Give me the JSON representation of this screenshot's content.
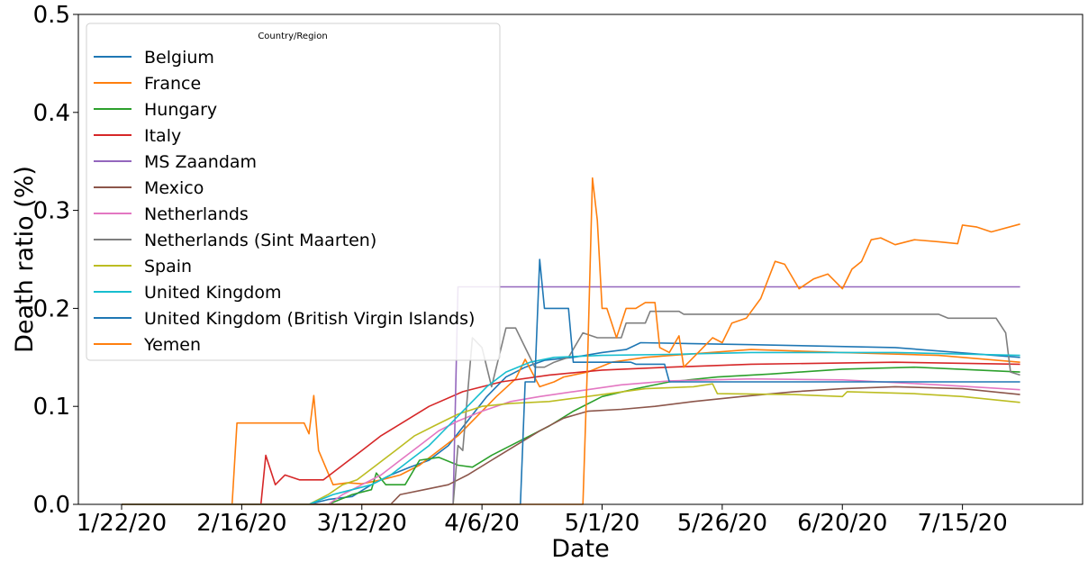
{
  "chart_data": {
    "type": "line",
    "xlabel": "Date",
    "ylabel": "Death ratio (%)",
    "x_start": "2020-01-22",
    "x_end": "2020-07-27",
    "xlim": [
      "2020-01-13",
      "2020-08-09"
    ],
    "ylim": [
      0,
      0.5
    ],
    "x_ticks": [
      "1/22/20",
      "2/16/20",
      "3/12/20",
      "4/6/20",
      "5/1/20",
      "5/26/20",
      "6/20/20",
      "7/15/20"
    ],
    "y_ticks": [
      "0.0",
      "0.1",
      "0.2",
      "0.3",
      "0.4",
      "0.5"
    ],
    "grid": false,
    "legend": {
      "title": "Country/Region",
      "placement": "top-left"
    },
    "series": [
      {
        "name": "Belgium",
        "color": "#1f77b4",
        "points": [
          [
            "2020-01-22",
            0
          ],
          [
            "2020-03-01",
            0
          ],
          [
            "2020-03-05",
            0.005
          ],
          [
            "2020-03-10",
            0.008
          ],
          [
            "2020-03-14",
            0.02
          ],
          [
            "2020-03-18",
            0.03
          ],
          [
            "2020-03-22",
            0.038
          ],
          [
            "2020-03-26",
            0.045
          ],
          [
            "2020-03-30",
            0.06
          ],
          [
            "2020-04-03",
            0.085
          ],
          [
            "2020-04-07",
            0.11
          ],
          [
            "2020-04-11",
            0.13
          ],
          [
            "2020-04-15",
            0.14
          ],
          [
            "2020-04-19",
            0.147
          ],
          [
            "2020-04-25",
            0.15
          ],
          [
            "2020-05-01",
            0.155
          ],
          [
            "2020-05-06",
            0.158
          ],
          [
            "2020-05-09",
            0.165
          ],
          [
            "2020-06-01",
            0.163
          ],
          [
            "2020-07-01",
            0.16
          ],
          [
            "2020-07-27",
            0.15
          ]
        ]
      },
      {
        "name": "France",
        "color": "#ff7f0e",
        "points": [
          [
            "2020-01-22",
            0
          ],
          [
            "2020-02-14",
            0
          ],
          [
            "2020-02-15",
            0.083
          ],
          [
            "2020-02-29",
            0.083
          ],
          [
            "2020-03-01",
            0.072
          ],
          [
            "2020-03-02",
            0.111
          ],
          [
            "2020-03-03",
            0.055
          ],
          [
            "2020-03-06",
            0.02
          ],
          [
            "2020-03-09",
            0.022
          ],
          [
            "2020-03-12",
            0.021
          ],
          [
            "2020-03-16",
            0.025
          ],
          [
            "2020-03-20",
            0.03
          ],
          [
            "2020-03-24",
            0.04
          ],
          [
            "2020-03-28",
            0.055
          ],
          [
            "2020-04-01",
            0.07
          ],
          [
            "2020-04-05",
            0.09
          ],
          [
            "2020-04-09",
            0.11
          ],
          [
            "2020-04-13",
            0.128
          ],
          [
            "2020-04-15",
            0.148
          ],
          [
            "2020-04-18",
            0.12
          ],
          [
            "2020-04-21",
            0.125
          ],
          [
            "2020-04-23",
            0.13
          ],
          [
            "2020-04-28",
            0.135
          ],
          [
            "2020-05-03",
            0.145
          ],
          [
            "2020-05-10",
            0.15
          ],
          [
            "2020-06-01",
            0.158
          ],
          [
            "2020-06-20",
            0.155
          ],
          [
            "2020-07-10",
            0.152
          ],
          [
            "2020-07-27",
            0.145
          ]
        ]
      },
      {
        "name": "Hungary",
        "color": "#2ca02c",
        "points": [
          [
            "2020-01-22",
            0
          ],
          [
            "2020-03-05",
            0
          ],
          [
            "2020-03-10",
            0.01
          ],
          [
            "2020-03-14",
            0.015
          ],
          [
            "2020-03-15",
            0.032
          ],
          [
            "2020-03-17",
            0.02
          ],
          [
            "2020-03-21",
            0.02
          ],
          [
            "2020-03-24",
            0.045
          ],
          [
            "2020-03-28",
            0.048
          ],
          [
            "2020-04-01",
            0.04
          ],
          [
            "2020-04-04",
            0.038
          ],
          [
            "2020-04-08",
            0.05
          ],
          [
            "2020-04-12",
            0.06
          ],
          [
            "2020-04-16",
            0.07
          ],
          [
            "2020-04-20",
            0.08
          ],
          [
            "2020-04-25",
            0.095
          ],
          [
            "2020-05-01",
            0.11
          ],
          [
            "2020-05-08",
            0.118
          ],
          [
            "2020-05-15",
            0.125
          ],
          [
            "2020-05-25",
            0.13
          ],
          [
            "2020-06-05",
            0.133
          ],
          [
            "2020-06-20",
            0.138
          ],
          [
            "2020-07-05",
            0.14
          ],
          [
            "2020-07-27",
            0.135
          ]
        ]
      },
      {
        "name": "Italy",
        "color": "#d62728",
        "points": [
          [
            "2020-01-22",
            0
          ],
          [
            "2020-02-20",
            0
          ],
          [
            "2020-02-21",
            0.05
          ],
          [
            "2020-02-23",
            0.02
          ],
          [
            "2020-02-25",
            0.03
          ],
          [
            "2020-02-28",
            0.025
          ],
          [
            "2020-03-04",
            0.025
          ],
          [
            "2020-03-08",
            0.04
          ],
          [
            "2020-03-12",
            0.055
          ],
          [
            "2020-03-16",
            0.07
          ],
          [
            "2020-03-20",
            0.082
          ],
          [
            "2020-03-26",
            0.1
          ],
          [
            "2020-04-02",
            0.115
          ],
          [
            "2020-04-10",
            0.125
          ],
          [
            "2020-04-20",
            0.132
          ],
          [
            "2020-05-01",
            0.137
          ],
          [
            "2020-05-15",
            0.14
          ],
          [
            "2020-06-01",
            0.143
          ],
          [
            "2020-07-01",
            0.145
          ],
          [
            "2020-07-27",
            0.143
          ]
        ]
      },
      {
        "name": "MS Zaandam",
        "color": "#9467bd",
        "points": [
          [
            "2020-01-22",
            0
          ],
          [
            "2020-03-31",
            0
          ],
          [
            "2020-04-01",
            0.222
          ],
          [
            "2020-07-27",
            0.222
          ]
        ]
      },
      {
        "name": "Mexico",
        "color": "#8c564b",
        "points": [
          [
            "2020-01-22",
            0
          ],
          [
            "2020-03-18",
            0
          ],
          [
            "2020-03-20",
            0.01
          ],
          [
            "2020-03-25",
            0.015
          ],
          [
            "2020-03-30",
            0.02
          ],
          [
            "2020-04-03",
            0.03
          ],
          [
            "2020-04-08",
            0.045
          ],
          [
            "2020-04-13",
            0.06
          ],
          [
            "2020-04-18",
            0.075
          ],
          [
            "2020-04-23",
            0.088
          ],
          [
            "2020-04-28",
            0.095
          ],
          [
            "2020-05-05",
            0.097
          ],
          [
            "2020-05-12",
            0.1
          ],
          [
            "2020-05-20",
            0.105
          ],
          [
            "2020-05-30",
            0.11
          ],
          [
            "2020-06-10",
            0.115
          ],
          [
            "2020-06-20",
            0.118
          ],
          [
            "2020-07-01",
            0.12
          ],
          [
            "2020-07-15",
            0.118
          ],
          [
            "2020-07-27",
            0.112
          ]
        ]
      },
      {
        "name": "Netherlands",
        "color": "#e377c2",
        "points": [
          [
            "2020-01-22",
            0
          ],
          [
            "2020-03-05",
            0
          ],
          [
            "2020-03-08",
            0.01
          ],
          [
            "2020-03-12",
            0.02
          ],
          [
            "2020-03-16",
            0.03
          ],
          [
            "2020-03-20",
            0.045
          ],
          [
            "2020-03-24",
            0.06
          ],
          [
            "2020-03-28",
            0.075
          ],
          [
            "2020-04-01",
            0.085
          ],
          [
            "2020-04-06",
            0.095
          ],
          [
            "2020-04-12",
            0.105
          ],
          [
            "2020-04-18",
            0.11
          ],
          [
            "2020-04-25",
            0.115
          ],
          [
            "2020-05-05",
            0.122
          ],
          [
            "2020-05-15",
            0.126
          ],
          [
            "2020-06-01",
            0.128
          ],
          [
            "2020-06-20",
            0.127
          ],
          [
            "2020-07-10",
            0.122
          ],
          [
            "2020-07-27",
            0.117
          ]
        ]
      },
      {
        "name": "Netherlands (Sint Maarten)",
        "color": "#7f7f7f",
        "points": [
          [
            "2020-01-22",
            0
          ],
          [
            "2020-03-31",
            0
          ],
          [
            "2020-04-01",
            0.06
          ],
          [
            "2020-04-02",
            0.055
          ],
          [
            "2020-04-04",
            0.17
          ],
          [
            "2020-04-06",
            0.16
          ],
          [
            "2020-04-08",
            0.12
          ],
          [
            "2020-04-11",
            0.18
          ],
          [
            "2020-04-13",
            0.18
          ],
          [
            "2020-04-15",
            0.16
          ],
          [
            "2020-04-17",
            0.14
          ],
          [
            "2020-04-19",
            0.14
          ],
          [
            "2020-04-21",
            0.145
          ],
          [
            "2020-04-24",
            0.15
          ],
          [
            "2020-04-27",
            0.175
          ],
          [
            "2020-04-30",
            0.17
          ],
          [
            "2020-05-05",
            0.17
          ],
          [
            "2020-05-06",
            0.185
          ],
          [
            "2020-05-10",
            0.185
          ],
          [
            "2020-05-11",
            0.197
          ],
          [
            "2020-05-17",
            0.197
          ],
          [
            "2020-05-18",
            0.194
          ],
          [
            "2020-07-10",
            0.194
          ],
          [
            "2020-07-12",
            0.19
          ],
          [
            "2020-07-22",
            0.19
          ],
          [
            "2020-07-24",
            0.175
          ],
          [
            "2020-07-25",
            0.135
          ],
          [
            "2020-07-27",
            0.132
          ]
        ]
      },
      {
        "name": "Spain",
        "color": "#bcbd22",
        "points": [
          [
            "2020-01-22",
            0
          ],
          [
            "2020-03-01",
            0
          ],
          [
            "2020-03-05",
            0.01
          ],
          [
            "2020-03-08",
            0.02
          ],
          [
            "2020-03-11",
            0.025
          ],
          [
            "2020-03-15",
            0.04
          ],
          [
            "2020-03-19",
            0.055
          ],
          [
            "2020-03-23",
            0.07
          ],
          [
            "2020-03-27",
            0.08
          ],
          [
            "2020-04-01",
            0.092
          ],
          [
            "2020-04-06",
            0.1
          ],
          [
            "2020-04-12",
            0.103
          ],
          [
            "2020-04-20",
            0.105
          ],
          [
            "2020-05-01",
            0.112
          ],
          [
            "2020-05-10",
            0.118
          ],
          [
            "2020-05-20",
            0.12
          ],
          [
            "2020-05-24",
            0.123
          ],
          [
            "2020-05-25",
            0.113
          ],
          [
            "2020-06-10",
            0.112
          ],
          [
            "2020-06-20",
            0.11
          ],
          [
            "2020-06-21",
            0.115
          ],
          [
            "2020-07-05",
            0.113
          ],
          [
            "2020-07-15",
            0.11
          ],
          [
            "2020-07-27",
            0.104
          ]
        ]
      },
      {
        "name": "United Kingdom",
        "color": "#17becf",
        "points": [
          [
            "2020-01-22",
            0
          ],
          [
            "2020-03-01",
            0
          ],
          [
            "2020-03-06",
            0.01
          ],
          [
            "2020-03-10",
            0.015
          ],
          [
            "2020-03-14",
            0.02
          ],
          [
            "2020-03-18",
            0.03
          ],
          [
            "2020-03-22",
            0.045
          ],
          [
            "2020-03-26",
            0.06
          ],
          [
            "2020-03-30",
            0.08
          ],
          [
            "2020-04-03",
            0.1
          ],
          [
            "2020-04-07",
            0.12
          ],
          [
            "2020-04-11",
            0.135
          ],
          [
            "2020-04-16",
            0.145
          ],
          [
            "2020-04-21",
            0.15
          ],
          [
            "2020-05-01",
            0.152
          ],
          [
            "2020-05-15",
            0.153
          ],
          [
            "2020-06-01",
            0.155
          ],
          [
            "2020-07-01",
            0.155
          ],
          [
            "2020-07-27",
            0.152
          ]
        ]
      },
      {
        "name": "United Kingdom (British Virgin Islands)",
        "color": "#1f77b4",
        "points": [
          [
            "2020-01-22",
            0
          ],
          [
            "2020-04-14",
            0
          ],
          [
            "2020-04-15",
            0.125
          ],
          [
            "2020-04-17",
            0.125
          ],
          [
            "2020-04-18",
            0.25
          ],
          [
            "2020-04-19",
            0.2
          ],
          [
            "2020-04-24",
            0.2
          ],
          [
            "2020-04-25",
            0.145
          ],
          [
            "2020-05-07",
            0.145
          ],
          [
            "2020-05-08",
            0.143
          ],
          [
            "2020-05-14",
            0.143
          ],
          [
            "2020-05-15",
            0.125
          ],
          [
            "2020-07-27",
            0.125
          ]
        ]
      },
      {
        "name": "Yemen",
        "color": "#ff7f0e",
        "points": [
          [
            "2020-01-22",
            0
          ],
          [
            "2020-04-27",
            0
          ],
          [
            "2020-04-28",
            0.15
          ],
          [
            "2020-04-29",
            0.333
          ],
          [
            "2020-04-30",
            0.29
          ],
          [
            "2020-05-01",
            0.2
          ],
          [
            "2020-05-02",
            0.2
          ],
          [
            "2020-05-04",
            0.17
          ],
          [
            "2020-05-06",
            0.2
          ],
          [
            "2020-05-08",
            0.2
          ],
          [
            "2020-05-10",
            0.206
          ],
          [
            "2020-05-12",
            0.206
          ],
          [
            "2020-05-13",
            0.16
          ],
          [
            "2020-05-15",
            0.155
          ],
          [
            "2020-05-17",
            0.172
          ],
          [
            "2020-05-18",
            0.14
          ],
          [
            "2020-05-21",
            0.155
          ],
          [
            "2020-05-24",
            0.17
          ],
          [
            "2020-05-26",
            0.165
          ],
          [
            "2020-05-28",
            0.185
          ],
          [
            "2020-05-31",
            0.19
          ],
          [
            "2020-06-03",
            0.21
          ],
          [
            "2020-06-06",
            0.248
          ],
          [
            "2020-06-08",
            0.245
          ],
          [
            "2020-06-11",
            0.22
          ],
          [
            "2020-06-14",
            0.23
          ],
          [
            "2020-06-17",
            0.235
          ],
          [
            "2020-06-20",
            0.22
          ],
          [
            "2020-06-22",
            0.24
          ],
          [
            "2020-06-24",
            0.248
          ],
          [
            "2020-06-26",
            0.27
          ],
          [
            "2020-06-28",
            0.272
          ],
          [
            "2020-07-01",
            0.265
          ],
          [
            "2020-07-05",
            0.27
          ],
          [
            "2020-07-10",
            0.268
          ],
          [
            "2020-07-14",
            0.266
          ],
          [
            "2020-07-15",
            0.285
          ],
          [
            "2020-07-18",
            0.283
          ],
          [
            "2020-07-21",
            0.278
          ],
          [
            "2020-07-27",
            0.286
          ]
        ]
      }
    ]
  }
}
